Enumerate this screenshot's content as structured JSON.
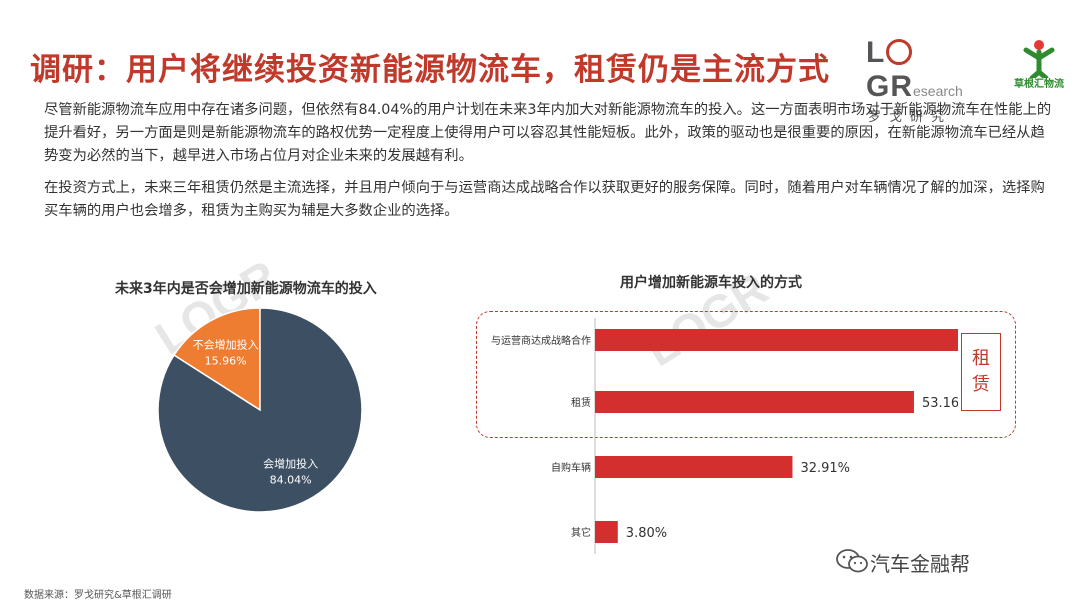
{
  "header": {
    "title": "调研：用户将继续投资新能源物流车，租赁仍是主流方式",
    "logo_mark_letter_1": "L",
    "logo_mark_letter_2": "G",
    "logo_mark_letter_3": "R",
    "logo_mark_sub": "esearch",
    "logo_cn": "罗戈研究",
    "partner_logo_text": "草根汇物流"
  },
  "body": {
    "paragraph_1": "尽管新能源物流车应用中存在诸多问题，但依然有84.04%的用户计划在未来3年内加大对新能源物流车的投入。这一方面表明市场对于新能源物流车在性能上的提升看好，另一方面是则是新能源物流车的路权优势一定程度上使得用户可以容忍其性能短板。此外，政策的驱动也是很重要的原因，在新能源物流车已经从趋势变为必然的当下，越早进入市场占位月对企业未来的发展越有利。",
    "paragraph_2": "在投资方式上，未来三年租赁仍然是主流选择，并且用户倾向于与运营商达成战略合作以获取更好的服务保障。同时，随着用户对车辆情况了解的加深，选择购买车辆的用户也会增多，租赁为主购买为辅是大多数企业的选择。"
  },
  "chart_data": [
    {
      "type": "pie",
      "title": "未来3年内是否会增加新能源物流车的投入",
      "slices": [
        {
          "label": "会增加投入",
          "value": 84.04,
          "display": "84.04%",
          "color": "#3d4f63"
        },
        {
          "label": "不会增加投入",
          "value": 15.96,
          "display": "15.96%",
          "color": "#ee7d31"
        }
      ]
    },
    {
      "type": "bar",
      "orientation": "horizontal",
      "title": "用户增加新能源车投入的方式",
      "categories": [
        "与运营商达成战略合作",
        "租赁",
        "自购车辆",
        "其它"
      ],
      "values": [
        60.76,
        53.16,
        32.91,
        3.8
      ],
      "value_labels": [
        "60.76%",
        "53.16%",
        "32.91%",
        "3.80%"
      ],
      "xlim": [
        0,
        70
      ],
      "bar_color": "#d32f2f",
      "grid": false,
      "annotation": {
        "text_line_1": "租",
        "text_line_2": "赁",
        "groups": [
          "与运营商达成战略合作",
          "租赁"
        ],
        "color": "#c0392b"
      }
    }
  ],
  "footer": {
    "source": "数据来源：罗戈研究&草根汇调研",
    "brand": "汽车金融帮"
  },
  "watermark": "LOGR"
}
